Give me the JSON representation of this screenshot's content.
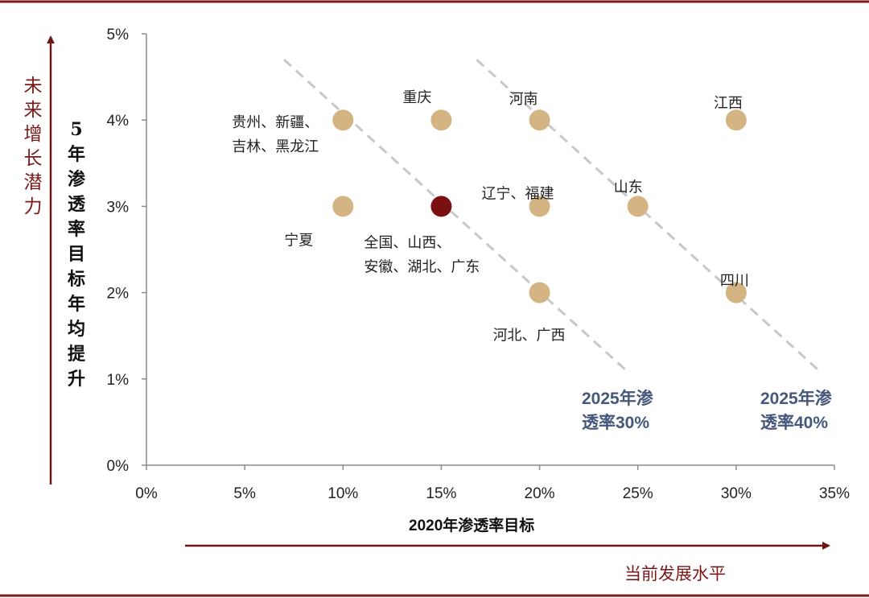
{
  "chart_data": {
    "type": "scatter",
    "xlabel": "2020年渗透率目标",
    "ylabel": "5年渗透率目标年均提升",
    "xlim": [
      0,
      35
    ],
    "ylim": [
      0,
      5
    ],
    "x_ticks": [
      "0%",
      "5%",
      "10%",
      "15%",
      "20%",
      "25%",
      "30%",
      "35%"
    ],
    "y_ticks": [
      "0%",
      "1%",
      "2%",
      "3%",
      "4%",
      "5%"
    ],
    "points": [
      {
        "x": 10,
        "y": 4,
        "label_lines": [
          "贵州、新疆、",
          "吉林、黑龙江"
        ],
        "highlight": false
      },
      {
        "x": 15,
        "y": 4,
        "label_lines": [
          "重庆"
        ],
        "highlight": false
      },
      {
        "x": 20,
        "y": 4,
        "label_lines": [
          "河南"
        ],
        "highlight": false
      },
      {
        "x": 30,
        "y": 4,
        "label_lines": [
          "江西"
        ],
        "highlight": false
      },
      {
        "x": 10,
        "y": 3,
        "label_lines": [
          "宁夏"
        ],
        "highlight": false
      },
      {
        "x": 15,
        "y": 3,
        "label_lines": [
          "全国、山西、",
          "安徽、湖北、广东"
        ],
        "highlight": true
      },
      {
        "x": 20,
        "y": 3,
        "label_lines": [
          "辽宁、福建"
        ],
        "highlight": false
      },
      {
        "x": 25,
        "y": 3,
        "label_lines": [
          "山东"
        ],
        "highlight": false
      },
      {
        "x": 20,
        "y": 2,
        "label_lines": [
          "河北、广西"
        ],
        "highlight": false
      },
      {
        "x": 30,
        "y": 2,
        "label_lines": [
          "四川"
        ],
        "highlight": false
      }
    ],
    "reference_lines": [
      {
        "name": "2025年渗透率30%",
        "label_lines": [
          "2025年渗",
          "透率30%"
        ],
        "from": [
          7,
          4.7
        ],
        "to": [
          24.4,
          1.1
        ]
      },
      {
        "name": "2025年渗透率40%",
        "label_lines": [
          "2025年渗",
          "透率40%"
        ],
        "from": [
          16.8,
          4.7
        ],
        "to": [
          34.2,
          1.1
        ]
      }
    ],
    "colors": {
      "point": "#d4b483",
      "highlight": "#7b1010",
      "reference_line": "#c8c8c8",
      "arrow": "#6e1515",
      "border": "#7b1a1a",
      "line_label": "#45577a"
    }
  },
  "annotations": {
    "y_arrow_label": "未来增长潜力",
    "x_arrow_label": "当前发展水平"
  }
}
